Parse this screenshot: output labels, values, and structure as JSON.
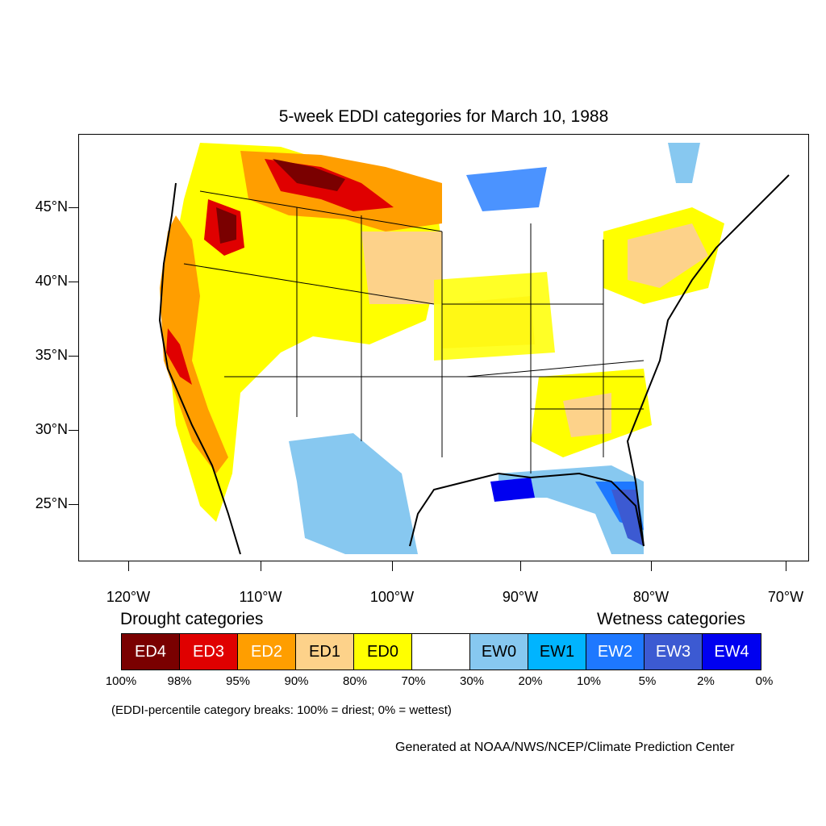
{
  "title": "5-week EDDI categories for March 10, 1988",
  "map": {
    "lat_labels": [
      "45°N",
      "40°N",
      "35°N",
      "30°N",
      "25°N"
    ],
    "lon_labels": [
      "120°W",
      "110°W",
      "100°W",
      "90°W",
      "80°W",
      "70°W"
    ]
  },
  "legend": {
    "drought_heading": "Drought categories",
    "wetness_heading": "Wetness categories",
    "categories": [
      {
        "label": "ED4",
        "color": "#7a0000",
        "text_color": "#ffffff"
      },
      {
        "label": "ED3",
        "color": "#e00000",
        "text_color": "#ffffff"
      },
      {
        "label": "ED2",
        "color": "#ff9e00",
        "text_color": "#ffffff"
      },
      {
        "label": "ED1",
        "color": "#fdd28a",
        "text_color": "#000000"
      },
      {
        "label": "ED0",
        "color": "#ffff00",
        "text_color": "#000000"
      },
      {
        "label": "",
        "color": "#ffffff",
        "text_color": "#000000"
      },
      {
        "label": "EW0",
        "color": "#87c8f0",
        "text_color": "#000000"
      },
      {
        "label": "EW1",
        "color": "#00b4ff",
        "text_color": "#000000"
      },
      {
        "label": "EW2",
        "color": "#1e78ff",
        "text_color": "#ffffff"
      },
      {
        "label": "EW3",
        "color": "#3c5ad2",
        "text_color": "#ffffff"
      },
      {
        "label": "EW4",
        "color": "#0000f0",
        "text_color": "#ffffff"
      }
    ],
    "breaks": [
      "100%",
      "98%",
      "95%",
      "90%",
      "80%",
      "70%",
      "30%",
      "20%",
      "10%",
      "5%",
      "2%",
      "0%"
    ],
    "note": "(EDDI-percentile category breaks: 100% = driest; 0% = wettest)"
  },
  "credit": "Generated at NOAA/NWS/NCEP/Climate Prediction Center"
}
